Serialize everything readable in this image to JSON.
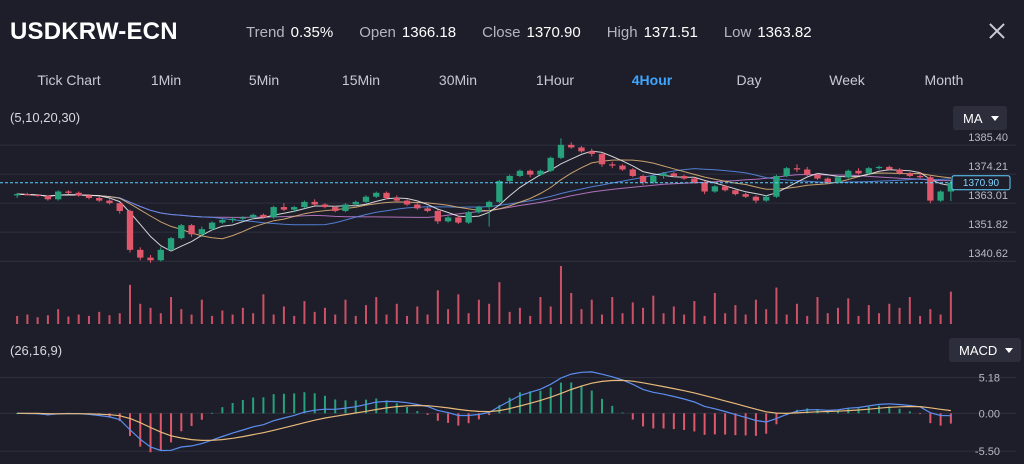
{
  "header": {
    "symbol": "USDKRW-ECN",
    "stats": [
      {
        "label": "Trend",
        "value": "0.35%"
      },
      {
        "label": "Open",
        "value": "1366.18"
      },
      {
        "label": "Close",
        "value": "1370.90"
      },
      {
        "label": "High",
        "value": "1371.51"
      },
      {
        "label": "Low",
        "value": "1363.82"
      }
    ],
    "close_icon": "close-icon"
  },
  "tabs": [
    {
      "label": "Tick Chart",
      "active": false
    },
    {
      "label": "1Min",
      "active": false
    },
    {
      "label": "5Min",
      "active": false
    },
    {
      "label": "15Min",
      "active": false
    },
    {
      "label": "30Min",
      "active": false
    },
    {
      "label": "1Hour",
      "active": false
    },
    {
      "label": "4Hour",
      "active": true
    },
    {
      "label": "Day",
      "active": false
    },
    {
      "label": "Week",
      "active": false
    },
    {
      "label": "Month",
      "active": false
    }
  ],
  "main_indicator": {
    "params": "(5,10,20,30)",
    "selected": "MA"
  },
  "sub_indicator": {
    "params": "(26,16,9)",
    "selected": "MACD"
  },
  "chart_data": {
    "type": "candlestick",
    "price_axis": {
      "ticks": [
        "1385.40",
        "1374.21",
        "1363.01",
        "1351.82",
        "1340.62"
      ],
      "range": [
        1338,
        1392
      ]
    },
    "last_price": "1370.90",
    "macd_axis": {
      "ticks": [
        "5.18",
        "0.00",
        "-5.50"
      ],
      "range": [
        -6.2,
        6.0
      ]
    },
    "colors": {
      "up": "#26a17b",
      "down": "#e0576b",
      "ma5": "#f3f3f6",
      "ma10": "#e8b97a",
      "ma20": "#5b8ef0",
      "ma30": "#c97fd4",
      "dif": "#5b8ef0",
      "dea": "#e8b97a",
      "last_line": "#5fd0ff"
    },
    "candles": [
      [
        1366,
        1367,
        1365,
        1366.5
      ],
      [
        1366.5,
        1367,
        1366,
        1366.2
      ],
      [
        1366.2,
        1366.5,
        1365.5,
        1365.8
      ],
      [
        1365.8,
        1366,
        1364,
        1364.5
      ],
      [
        1364.5,
        1368,
        1364,
        1367.5
      ],
      [
        1367.5,
        1368,
        1366.5,
        1367
      ],
      [
        1367,
        1367.5,
        1365.5,
        1366
      ],
      [
        1366,
        1366.5,
        1364.5,
        1365
      ],
      [
        1365,
        1365.5,
        1363.5,
        1364
      ],
      [
        1364,
        1364.5,
        1362.5,
        1363
      ],
      [
        1363,
        1363.5,
        1359,
        1360
      ],
      [
        1360,
        1360.5,
        1344,
        1345
      ],
      [
        1345,
        1346,
        1341,
        1342
      ],
      [
        1342,
        1343,
        1340,
        1341
      ],
      [
        1341,
        1346,
        1340.5,
        1345
      ],
      [
        1345,
        1350,
        1344.5,
        1349.5
      ],
      [
        1349.5,
        1355,
        1349,
        1354.5
      ],
      [
        1354.5,
        1355,
        1350,
        1351
      ],
      [
        1351,
        1354,
        1350,
        1353
      ],
      [
        1353,
        1356,
        1352.5,
        1355.5
      ],
      [
        1355.5,
        1357,
        1355,
        1356.5
      ],
      [
        1356.5,
        1357.5,
        1355.5,
        1357
      ],
      [
        1357,
        1358,
        1356,
        1357.5
      ],
      [
        1357.5,
        1359,
        1357,
        1358.5
      ],
      [
        1358.5,
        1359,
        1357,
        1357.5
      ],
      [
        1357.5,
        1362,
        1357,
        1361.5
      ],
      [
        1361.5,
        1363,
        1360,
        1360.5
      ],
      [
        1360.5,
        1362,
        1359.5,
        1361.5
      ],
      [
        1361.5,
        1364,
        1361,
        1363.5
      ],
      [
        1363.5,
        1364.5,
        1362,
        1362.5
      ],
      [
        1362.5,
        1363,
        1361,
        1361.5
      ],
      [
        1361.5,
        1362,
        1359.5,
        1360
      ],
      [
        1360,
        1363,
        1359.5,
        1362.5
      ],
      [
        1362.5,
        1364,
        1362,
        1363.5
      ],
      [
        1363.5,
        1366,
        1363,
        1365.5
      ],
      [
        1365.5,
        1367.5,
        1365,
        1367
      ],
      [
        1367,
        1367.5,
        1364.5,
        1365
      ],
      [
        1365,
        1366,
        1363.5,
        1364
      ],
      [
        1364,
        1364.5,
        1362,
        1362.5
      ],
      [
        1362.5,
        1363,
        1360.5,
        1361
      ],
      [
        1361,
        1361.5,
        1359.5,
        1360
      ],
      [
        1360,
        1360.5,
        1355,
        1356
      ],
      [
        1356,
        1358,
        1355.5,
        1357.5
      ],
      [
        1357.5,
        1358,
        1355,
        1355.5
      ],
      [
        1355.5,
        1360,
        1355,
        1359.5
      ],
      [
        1359.5,
        1362,
        1359,
        1361.5
      ],
      [
        1361.5,
        1364,
        1354,
        1363.5
      ],
      [
        1363.5,
        1372,
        1363,
        1371.5
      ],
      [
        1371.5,
        1374,
        1370.5,
        1373.5
      ],
      [
        1373.5,
        1376,
        1373,
        1375.5
      ],
      [
        1375.5,
        1376,
        1373,
        1374
      ],
      [
        1374,
        1376,
        1373.5,
        1375.5
      ],
      [
        1375.5,
        1381,
        1375,
        1380.5
      ],
      [
        1380.5,
        1388,
        1380,
        1385.5
      ],
      [
        1385.5,
        1386.5,
        1384,
        1384.5
      ],
      [
        1384.5,
        1385,
        1382.5,
        1383
      ],
      [
        1383,
        1384,
        1381,
        1382
      ],
      [
        1382,
        1382.5,
        1377,
        1378
      ],
      [
        1378,
        1379,
        1376.5,
        1377.5
      ],
      [
        1377.5,
        1378,
        1375.5,
        1376
      ],
      [
        1376,
        1376.5,
        1373,
        1373.5
      ],
      [
        1373.5,
        1374,
        1370,
        1371
      ],
      [
        1371,
        1374,
        1370.5,
        1373.5
      ],
      [
        1373.5,
        1375,
        1372.5,
        1374.5
      ],
      [
        1374.5,
        1375,
        1373,
        1373.5
      ],
      [
        1373.5,
        1374,
        1372,
        1372.5
      ],
      [
        1372.5,
        1373,
        1370.5,
        1371
      ],
      [
        1371,
        1371.5,
        1366.5,
        1367.5
      ],
      [
        1367.5,
        1370,
        1367,
        1369.5
      ],
      [
        1369.5,
        1370,
        1367.5,
        1368
      ],
      [
        1368,
        1368.5,
        1366,
        1366.5
      ],
      [
        1366.5,
        1367,
        1365,
        1365.5
      ],
      [
        1365.5,
        1366,
        1363,
        1364
      ],
      [
        1364,
        1366,
        1363.5,
        1365.5
      ],
      [
        1365.5,
        1374,
        1365,
        1373.5
      ],
      [
        1373.5,
        1377,
        1373,
        1376.5
      ],
      [
        1376.5,
        1378,
        1375,
        1376
      ],
      [
        1376,
        1377,
        1373.5,
        1374
      ],
      [
        1374,
        1374.5,
        1372,
        1372.5
      ],
      [
        1372.5,
        1373,
        1370.5,
        1371
      ],
      [
        1371,
        1373.5,
        1370.5,
        1373
      ],
      [
        1373,
        1376,
        1372.5,
        1375.5
      ],
      [
        1375.5,
        1376.5,
        1374,
        1374.5
      ],
      [
        1374.5,
        1377,
        1374,
        1376.5
      ],
      [
        1376.5,
        1377.5,
        1376,
        1377
      ],
      [
        1377,
        1377.5,
        1375.5,
        1376
      ],
      [
        1376,
        1376.5,
        1374,
        1374.5
      ],
      [
        1374.5,
        1375,
        1373,
        1373.5
      ],
      [
        1373.5,
        1375,
        1372.5,
        1373
      ],
      [
        1373,
        1373.5,
        1363,
        1364
      ],
      [
        1364,
        1368,
        1363.5,
        1367.5
      ],
      [
        1367.5,
        1372,
        1363.82,
        1370.9
      ]
    ],
    "volume": [
      12,
      14,
      10,
      13,
      22,
      11,
      14,
      12,
      18,
      13,
      16,
      58,
      30,
      24,
      16,
      40,
      22,
      14,
      36,
      12,
      20,
      14,
      24,
      16,
      44,
      14,
      26,
      12,
      34,
      18,
      24,
      14,
      36,
      12,
      28,
      40,
      14,
      30,
      12,
      26,
      14,
      50,
      22,
      44,
      16,
      36,
      30,
      62,
      18,
      24,
      12,
      40,
      26,
      86,
      46,
      22,
      36,
      14,
      40,
      16,
      32,
      24,
      42,
      16,
      26,
      14,
      34,
      12,
      46,
      16,
      28,
      14,
      36,
      22,
      54,
      14,
      30,
      12,
      40,
      16,
      24,
      38,
      12,
      28,
      16,
      30,
      24,
      40,
      12,
      22,
      14,
      48
    ]
  }
}
